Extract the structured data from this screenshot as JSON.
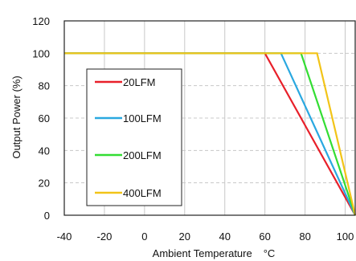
{
  "chart_data": {
    "type": "line",
    "title": "",
    "xlabel": "Ambient Temperature",
    "xunit": "°C",
    "ylabel": "Output Power  (%)",
    "xlim": [
      -40,
      105
    ],
    "ylim": [
      0,
      120
    ],
    "x_ticks": [
      -40,
      -20,
      0,
      20,
      40,
      60,
      80,
      100
    ],
    "y_ticks": [
      0,
      20,
      40,
      60,
      80,
      100,
      120
    ],
    "grid": true,
    "legend_position": "left",
    "series": [
      {
        "name": "20LFM",
        "color": "#e8202a",
        "points": [
          [
            -40,
            100
          ],
          [
            60,
            100
          ],
          [
            105,
            0
          ]
        ]
      },
      {
        "name": "100LFM",
        "color": "#2aa8e0",
        "points": [
          [
            -40,
            100
          ],
          [
            68,
            100
          ],
          [
            105,
            0
          ]
        ]
      },
      {
        "name": "200LFM",
        "color": "#33dd33",
        "points": [
          [
            -40,
            100
          ],
          [
            78,
            100
          ],
          [
            105,
            0
          ]
        ]
      },
      {
        "name": "400LFM",
        "color": "#f2c418",
        "points": [
          [
            -40,
            100
          ],
          [
            86,
            100
          ],
          [
            105,
            0
          ]
        ]
      }
    ]
  }
}
